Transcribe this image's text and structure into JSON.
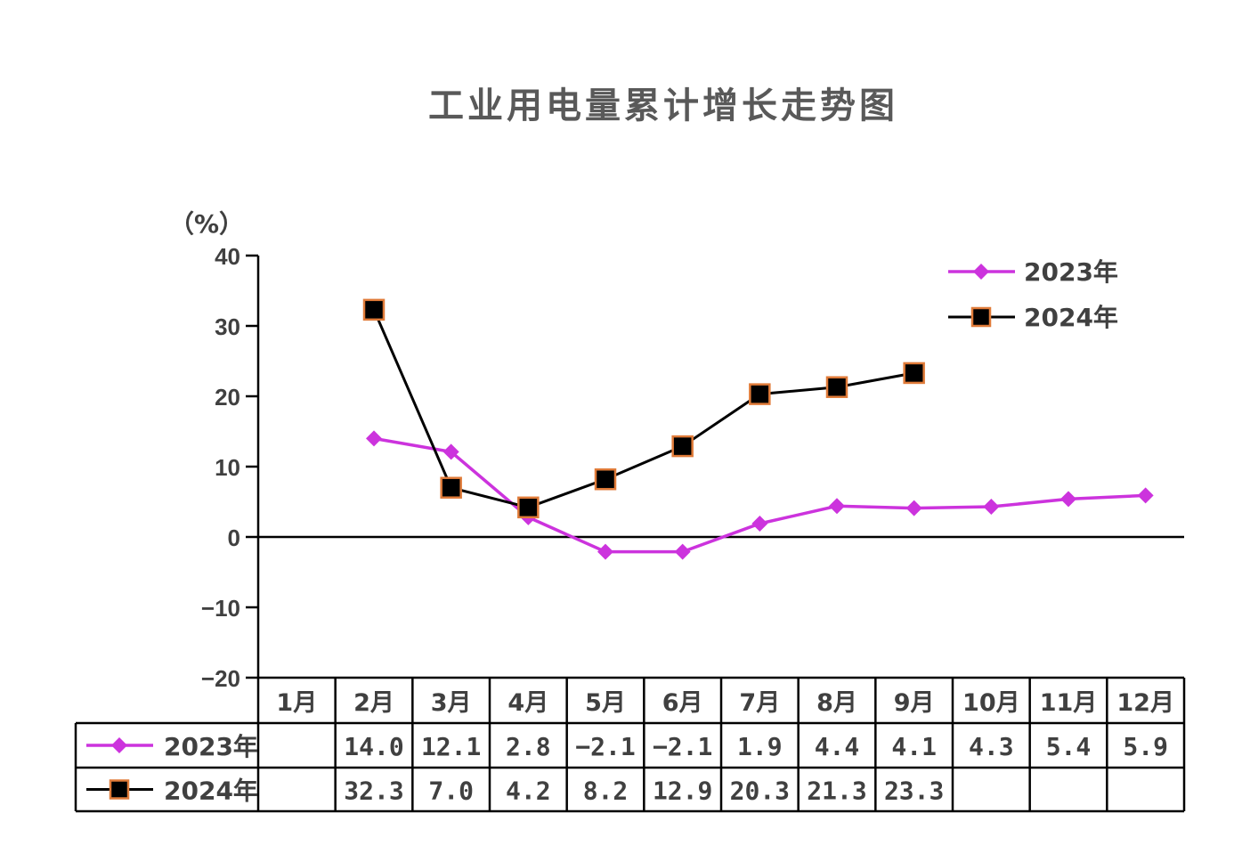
{
  "chart_data": {
    "type": "line",
    "title": "工业用电量累计增长走势图",
    "ylabel": "（%）",
    "ylim": [
      -20,
      40
    ],
    "yticks": [
      "40",
      "30",
      "20",
      "10",
      "0",
      "−10",
      "−20"
    ],
    "ytick_values": [
      40,
      30,
      20,
      10,
      0,
      -10,
      -20
    ],
    "categories": [
      "1月",
      "2月",
      "3月",
      "4月",
      "5月",
      "6月",
      "7月",
      "8月",
      "9月",
      "10月",
      "11月",
      "12月"
    ],
    "legend_position": "top-right",
    "grid": false,
    "series": [
      {
        "name": "2023年",
        "color": "#cc33dd",
        "marker": "diamond",
        "values": [
          null,
          14.0,
          12.1,
          2.8,
          -2.1,
          -2.1,
          1.9,
          4.4,
          4.1,
          4.3,
          5.4,
          5.9
        ],
        "labels": [
          "",
          "14.0",
          "12.1",
          "2.8",
          "−2.1",
          "−2.1",
          "1.9",
          "4.4",
          "4.1",
          "4.3",
          "5.4",
          "5.9"
        ]
      },
      {
        "name": "2024年",
        "color": "#000000",
        "marker_edge": "#e07b39",
        "marker": "square",
        "values": [
          null,
          32.3,
          7.0,
          4.2,
          8.2,
          12.9,
          20.3,
          21.3,
          23.3,
          null,
          null,
          null
        ],
        "labels": [
          "",
          "32.3",
          "7.0",
          "4.2",
          "8.2",
          "12.9",
          "20.3",
          "21.3",
          "23.3",
          "",
          "",
          ""
        ]
      }
    ]
  }
}
